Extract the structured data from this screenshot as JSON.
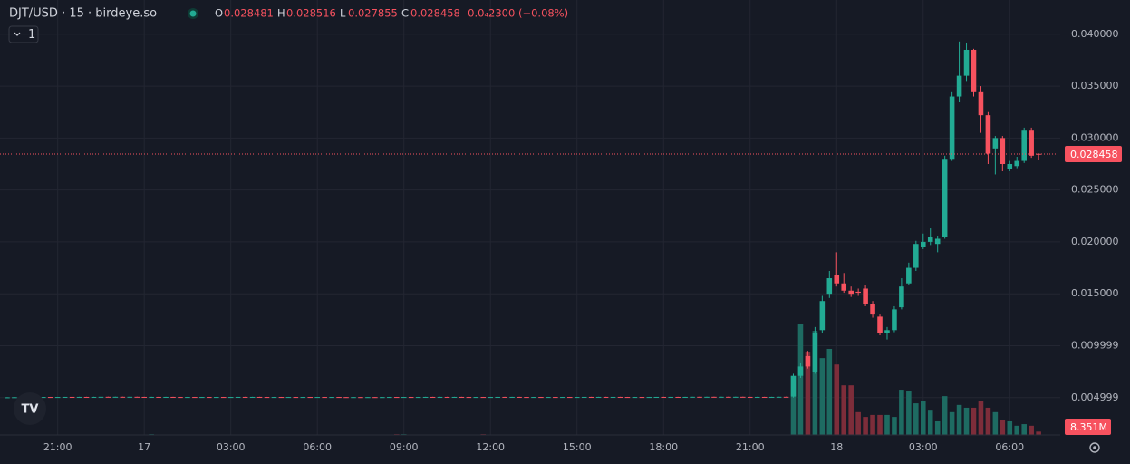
{
  "chart_data": {
    "type": "candlestick",
    "title": "DJT/USD · 15 · birdeye.so",
    "interval_button": "1",
    "ohlc_labels": [
      "O",
      "H",
      "L",
      "C"
    ],
    "change": "-0.0₄2300 (−0.08%)",
    "up_color": "#22ab94",
    "down_color": "#f7525f",
    "volume_up_color": "#1e6b62",
    "volume_down_color": "#7d2d3a",
    "grid": true,
    "ylim": [
      0.0014,
      0.0433
    ],
    "yticks": [
      {
        "value": 0.04,
        "label": "0.040000"
      },
      {
        "value": 0.035,
        "label": "0.035000"
      },
      {
        "value": 0.03,
        "label": "0.030000"
      },
      {
        "value": 0.025,
        "label": "0.025000"
      },
      {
        "value": 0.02,
        "label": "0.020000"
      },
      {
        "value": 0.015,
        "label": "0.015000"
      },
      {
        "value": 0.009999,
        "label": "0.009999"
      },
      {
        "value": 0.004999,
        "label": "0.004999"
      }
    ],
    "xlim": [
      -1,
      146
    ],
    "xticks": [
      {
        "value": 7,
        "label": "21:00"
      },
      {
        "value": 19,
        "label": "17"
      },
      {
        "value": 31,
        "label": "03:00"
      },
      {
        "value": 43,
        "label": "06:00"
      },
      {
        "value": 55,
        "label": "09:00"
      },
      {
        "value": 67,
        "label": "12:00"
      },
      {
        "value": 79,
        "label": "15:00"
      },
      {
        "value": 91,
        "label": "18:00"
      },
      {
        "value": 103,
        "label": "21:00"
      },
      {
        "value": 115,
        "label": "18"
      },
      {
        "value": 127,
        "label": "03:00"
      },
      {
        "value": 139,
        "label": "06:00"
      }
    ],
    "candles": [
      [
        0.00502,
        0.00504,
        0.00501,
        0.00503
      ],
      [
        0.00503,
        0.00505,
        0.00502,
        0.00504
      ],
      [
        0.00504,
        0.00505,
        0.00502,
        0.00503
      ],
      [
        0.00503,
        0.00505,
        0.00502,
        0.00504
      ],
      [
        0.00504,
        0.00506,
        0.00503,
        0.00505
      ],
      [
        0.00505,
        0.00506,
        0.00503,
        0.00506
      ],
      [
        0.00506,
        0.00507,
        0.00504,
        0.00505
      ],
      [
        0.00505,
        0.00507,
        0.00504,
        0.00506
      ],
      [
        0.00506,
        0.00507,
        0.00504,
        0.00507
      ],
      [
        0.00507,
        0.00508,
        0.00505,
        0.00506
      ],
      [
        0.00506,
        0.00508,
        0.00505,
        0.00507
      ],
      [
        0.00507,
        0.00508,
        0.00505,
        0.00506
      ],
      [
        0.00506,
        0.00508,
        0.00505,
        0.00507
      ],
      [
        0.00507,
        0.00508,
        0.00506,
        0.00508
      ],
      [
        0.00508,
        0.00509,
        0.00506,
        0.00507
      ],
      [
        0.00507,
        0.00509,
        0.00506,
        0.00508
      ],
      [
        0.00508,
        0.00509,
        0.00506,
        0.00507
      ],
      [
        0.00507,
        0.00509,
        0.00506,
        0.00508
      ],
      [
        0.00508,
        0.00509,
        0.00506,
        0.00507
      ],
      [
        0.00507,
        0.00508,
        0.00505,
        0.00506
      ],
      [
        0.00506,
        0.00508,
        0.00505,
        0.00507
      ],
      [
        0.00507,
        0.00508,
        0.00505,
        0.00506
      ],
      [
        0.00506,
        0.00508,
        0.00505,
        0.00507
      ],
      [
        0.00507,
        0.00508,
        0.00505,
        0.00506
      ],
      [
        0.00506,
        0.00507,
        0.00504,
        0.00505
      ],
      [
        0.00505,
        0.00507,
        0.00504,
        0.00506
      ],
      [
        0.00506,
        0.00507,
        0.00504,
        0.00505
      ],
      [
        0.00505,
        0.00507,
        0.00504,
        0.00506
      ],
      [
        0.00506,
        0.00507,
        0.00504,
        0.00505
      ],
      [
        0.00505,
        0.00507,
        0.00504,
        0.00506
      ],
      [
        0.00506,
        0.00507,
        0.00504,
        0.00505
      ],
      [
        0.00505,
        0.00507,
        0.00504,
        0.00506
      ],
      [
        0.00506,
        0.00507,
        0.00505,
        0.00507
      ],
      [
        0.00507,
        0.00508,
        0.00505,
        0.00506
      ],
      [
        0.00506,
        0.00508,
        0.00505,
        0.00507
      ],
      [
        0.00507,
        0.00508,
        0.00505,
        0.00506
      ],
      [
        0.00506,
        0.00507,
        0.00504,
        0.00505
      ],
      [
        0.00505,
        0.00507,
        0.00504,
        0.00506
      ],
      [
        0.00506,
        0.00507,
        0.00504,
        0.00505
      ],
      [
        0.00505,
        0.00507,
        0.00504,
        0.00506
      ],
      [
        0.00506,
        0.00507,
        0.00504,
        0.00505
      ],
      [
        0.00505,
        0.00507,
        0.00504,
        0.00506
      ],
      [
        0.00506,
        0.00507,
        0.00504,
        0.00505
      ],
      [
        0.00505,
        0.00506,
        0.00504,
        0.00506
      ],
      [
        0.00506,
        0.00507,
        0.00504,
        0.00505
      ],
      [
        0.00505,
        0.00506,
        0.00504,
        0.00506
      ],
      [
        0.00506,
        0.00507,
        0.00504,
        0.00505
      ],
      [
        0.00505,
        0.00506,
        0.00503,
        0.00504
      ],
      [
        0.00504,
        0.00506,
        0.00503,
        0.00505
      ],
      [
        0.00505,
        0.00506,
        0.00503,
        0.00504
      ],
      [
        0.00504,
        0.00506,
        0.00503,
        0.00505
      ],
      [
        0.00505,
        0.00506,
        0.00503,
        0.00504
      ],
      [
        0.00504,
        0.00506,
        0.00503,
        0.00505
      ],
      [
        0.00505,
        0.00507,
        0.00504,
        0.00506
      ],
      [
        0.00506,
        0.00507,
        0.00504,
        0.00505
      ],
      [
        0.00505,
        0.00507,
        0.00504,
        0.00506
      ],
      [
        0.00506,
        0.00507,
        0.00504,
        0.00505
      ],
      [
        0.00505,
        0.00507,
        0.00504,
        0.00506
      ],
      [
        0.00506,
        0.00508,
        0.00505,
        0.00507
      ],
      [
        0.00507,
        0.00508,
        0.00505,
        0.00506
      ],
      [
        0.00506,
        0.00508,
        0.00505,
        0.00507
      ],
      [
        0.00507,
        0.00508,
        0.00505,
        0.00506
      ],
      [
        0.00506,
        0.00508,
        0.00505,
        0.00507
      ],
      [
        0.00507,
        0.00508,
        0.00505,
        0.00506
      ],
      [
        0.00506,
        0.00507,
        0.00504,
        0.00505
      ],
      [
        0.00505,
        0.00507,
        0.00504,
        0.00506
      ],
      [
        0.00506,
        0.00507,
        0.00504,
        0.00505
      ],
      [
        0.00505,
        0.00507,
        0.00504,
        0.00506
      ],
      [
        0.00506,
        0.00507,
        0.00505,
        0.00507
      ],
      [
        0.00507,
        0.00508,
        0.00505,
        0.00506
      ],
      [
        0.00506,
        0.00508,
        0.00505,
        0.00507
      ],
      [
        0.00507,
        0.00508,
        0.00505,
        0.00506
      ],
      [
        0.00506,
        0.00507,
        0.00504,
        0.00505
      ],
      [
        0.00505,
        0.00507,
        0.00504,
        0.00506
      ],
      [
        0.00506,
        0.00507,
        0.00504,
        0.00505
      ],
      [
        0.00505,
        0.00507,
        0.00504,
        0.00506
      ],
      [
        0.00506,
        0.00507,
        0.00504,
        0.00505
      ],
      [
        0.00505,
        0.00507,
        0.00504,
        0.00506
      ],
      [
        0.00506,
        0.00507,
        0.00504,
        0.00505
      ],
      [
        0.00505,
        0.00507,
        0.00504,
        0.00506
      ],
      [
        0.00506,
        0.00507,
        0.00505,
        0.00507
      ],
      [
        0.00507,
        0.00508,
        0.00505,
        0.00506
      ],
      [
        0.00506,
        0.00508,
        0.00505,
        0.00507
      ],
      [
        0.00507,
        0.00508,
        0.00505,
        0.00506
      ],
      [
        0.00506,
        0.00508,
        0.00505,
        0.00507
      ],
      [
        0.00507,
        0.00508,
        0.00505,
        0.00506
      ],
      [
        0.00506,
        0.00507,
        0.00504,
        0.00505
      ],
      [
        0.00505,
        0.00507,
        0.00504,
        0.00506
      ],
      [
        0.00506,
        0.00507,
        0.00504,
        0.00505
      ],
      [
        0.00505,
        0.00507,
        0.00504,
        0.00506
      ],
      [
        0.00506,
        0.00507,
        0.00505,
        0.00507
      ],
      [
        0.00507,
        0.00508,
        0.00505,
        0.00506
      ],
      [
        0.00506,
        0.00508,
        0.00505,
        0.00507
      ],
      [
        0.00507,
        0.00508,
        0.00505,
        0.00506
      ],
      [
        0.00506,
        0.00508,
        0.00505,
        0.00507
      ],
      [
        0.00507,
        0.00508,
        0.00505,
        0.00508
      ],
      [
        0.00508,
        0.00509,
        0.00506,
        0.00507
      ],
      [
        0.00507,
        0.00509,
        0.00506,
        0.00508
      ],
      [
        0.00508,
        0.00509,
        0.00506,
        0.00507
      ],
      [
        0.00507,
        0.00509,
        0.00506,
        0.00508
      ],
      [
        0.00508,
        0.00509,
        0.00506,
        0.00507
      ],
      [
        0.00507,
        0.00509,
        0.00506,
        0.00508
      ],
      [
        0.00508,
        0.00509,
        0.00506,
        0.00507
      ],
      [
        0.00507,
        0.00508,
        0.00505,
        0.00506
      ],
      [
        0.00506,
        0.00508,
        0.00505,
        0.00507
      ],
      [
        0.00507,
        0.00508,
        0.00505,
        0.00506
      ],
      [
        0.00506,
        0.00508,
        0.00505,
        0.00507
      ],
      [
        0.00507,
        0.00508,
        0.00505,
        0.00508
      ],
      [
        0.00508,
        0.00509,
        0.00506,
        0.00507
      ],
      [
        0.0051,
        0.0073,
        0.005,
        0.0071
      ],
      [
        0.0071,
        0.0083,
        0.0069,
        0.008
      ],
      [
        0.009,
        0.0095,
        0.0078,
        0.008
      ],
      [
        0.0075,
        0.0118,
        0.0073,
        0.0112
      ],
      [
        0.0115,
        0.0148,
        0.0112,
        0.0143
      ],
      [
        0.015,
        0.0172,
        0.0146,
        0.0165
      ],
      [
        0.0168,
        0.019,
        0.0157,
        0.016
      ],
      [
        0.016,
        0.017,
        0.0151,
        0.0153
      ],
      [
        0.0153,
        0.0157,
        0.0147,
        0.015
      ],
      [
        0.0152,
        0.0155,
        0.0148,
        0.0151
      ],
      [
        0.0155,
        0.0158,
        0.0138,
        0.014
      ],
      [
        0.014,
        0.0143,
        0.0127,
        0.013
      ],
      [
        0.0128,
        0.013,
        0.011,
        0.0112
      ],
      [
        0.0112,
        0.0118,
        0.0106,
        0.0115
      ],
      [
        0.0115,
        0.0138,
        0.0113,
        0.0135
      ],
      [
        0.0137,
        0.0165,
        0.0135,
        0.0157
      ],
      [
        0.016,
        0.018,
        0.0158,
        0.0175
      ],
      [
        0.0175,
        0.0201,
        0.0172,
        0.0198
      ],
      [
        0.0195,
        0.0208,
        0.0193,
        0.02
      ],
      [
        0.02,
        0.0213,
        0.0197,
        0.0205
      ],
      [
        0.0198,
        0.0206,
        0.019,
        0.0203
      ],
      [
        0.0205,
        0.0283,
        0.0203,
        0.028
      ],
      [
        0.028,
        0.0345,
        0.0278,
        0.034
      ],
      [
        0.034,
        0.0393,
        0.0335,
        0.036
      ],
      [
        0.036,
        0.0392,
        0.0355,
        0.0385
      ],
      [
        0.0385,
        0.0386,
        0.034,
        0.0345
      ],
      [
        0.0345,
        0.035,
        0.0305,
        0.0322
      ],
      [
        0.0322,
        0.0325,
        0.0275,
        0.0285
      ],
      [
        0.029,
        0.0302,
        0.0265,
        0.03
      ],
      [
        0.03,
        0.0302,
        0.0268,
        0.0275
      ],
      [
        0.027,
        0.0278,
        0.0268,
        0.0275
      ],
      [
        0.0273,
        0.0282,
        0.0271,
        0.0278
      ],
      [
        0.0278,
        0.031,
        0.0276,
        0.0308
      ],
      [
        0.0308,
        0.031,
        0.0281,
        0.0283
      ],
      [
        0.028481,
        0.028516,
        0.027855,
        0.028458
      ]
    ],
    "volume": {
      "y2lim": [
        0,
        1086
      ],
      "values": [
        1,
        1,
        1,
        1,
        1,
        1,
        1,
        1,
        1,
        1,
        1,
        1,
        1,
        1,
        1,
        1,
        1,
        1,
        1,
        1,
        2,
        1,
        1,
        1,
        1,
        1,
        1,
        1,
        1,
        1,
        1,
        1,
        1,
        1,
        1,
        1,
        1,
        1,
        1,
        1,
        1,
        1,
        1,
        1,
        1,
        1,
        1,
        1,
        1,
        1,
        1,
        1,
        1,
        1,
        2,
        2,
        1,
        1,
        1,
        1,
        1,
        1,
        1,
        1,
        1,
        1,
        2,
        1,
        1,
        1,
        1,
        1,
        1,
        1,
        1,
        1,
        1,
        1,
        1,
        1,
        1,
        1,
        1,
        1,
        1,
        1,
        1,
        1,
        1,
        1,
        1,
        1,
        1,
        1,
        1,
        1,
        1,
        1,
        1,
        1,
        1,
        1,
        1,
        1,
        1,
        1,
        1,
        1,
        1,
        147,
        276,
        208,
        260,
        192,
        215,
        176,
        124,
        124,
        57,
        45,
        50,
        50,
        50,
        45,
        113,
        109,
        79,
        86,
        63,
        34,
        97,
        57,
        75,
        68,
        68,
        84,
        68,
        57,
        38,
        34,
        23,
        27,
        23,
        8.351
      ],
      "last_label": "8.351M"
    }
  }
}
